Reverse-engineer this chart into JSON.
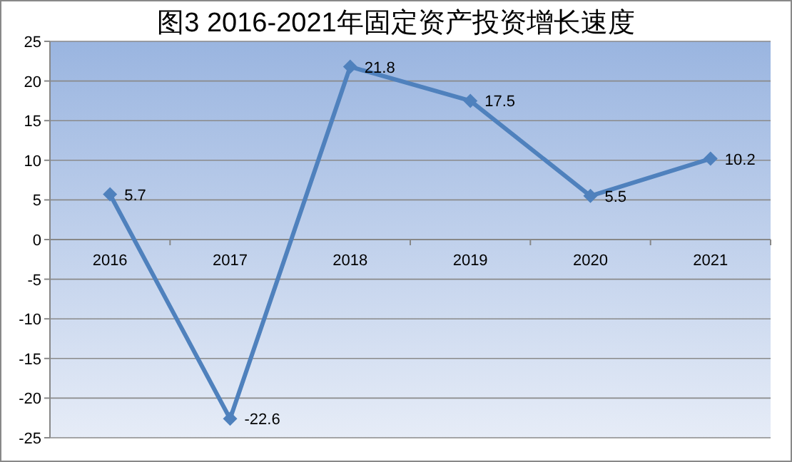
{
  "chart_data": {
    "type": "line",
    "title": "图3 2016-2021年固定资产投资增长速度",
    "categories": [
      "2016",
      "2017",
      "2018",
      "2019",
      "2020",
      "2021"
    ],
    "values": [
      5.7,
      -22.6,
      21.8,
      17.5,
      5.5,
      10.2
    ],
    "color": "#4f81bd",
    "marker": "diamond",
    "data_labels": true,
    "ylim": [
      -25,
      25
    ],
    "yticks": [
      -25,
      -20,
      -15,
      -10,
      -5,
      0,
      5,
      10,
      15,
      20,
      25
    ],
    "grid": "y"
  }
}
